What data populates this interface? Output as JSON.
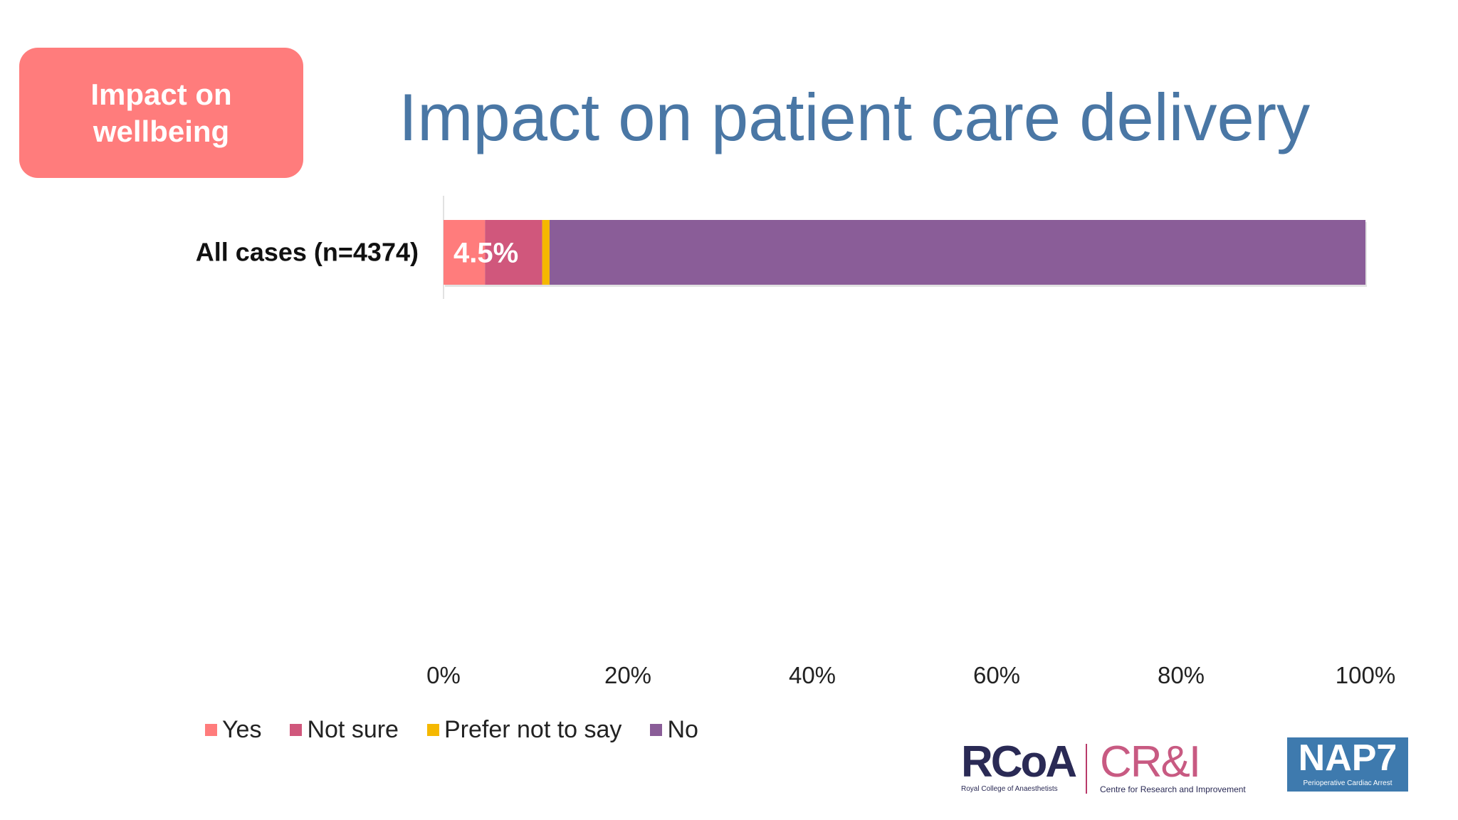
{
  "badge": {
    "line1": "Impact on",
    "line2": "wellbeing",
    "color": "#ff7c7c"
  },
  "title": "Impact on patient care delivery",
  "chart_data": {
    "type": "bar",
    "orientation": "horizontal",
    "stacked": true,
    "categories": [
      "All cases (n=4374)"
    ],
    "series": [
      {
        "name": "Yes",
        "values": [
          4.5
        ],
        "color": "#ff7c7c"
      },
      {
        "name": "Not sure",
        "values": [
          6.2
        ],
        "color": "#d0577c"
      },
      {
        "name": "Prefer not to say",
        "values": [
          0.8
        ],
        "color": "#f5b800"
      },
      {
        "name": "No",
        "values": [
          88.5
        ],
        "color": "#8a5d98"
      }
    ],
    "data_labels": [
      {
        "series": "Yes",
        "category": "All cases (n=4374)",
        "text": "4.5%"
      }
    ],
    "x_ticks": [
      "0%",
      "20%",
      "40%",
      "60%",
      "80%",
      "100%"
    ],
    "xlim": [
      0,
      100
    ],
    "legend_position": "bottom-left",
    "grid": false
  },
  "legend": [
    {
      "label": "Yes",
      "color": "#ff7c7c"
    },
    {
      "label": "Not sure",
      "color": "#d0577c"
    },
    {
      "label": "Prefer not to say",
      "color": "#f5b800"
    },
    {
      "label": "No",
      "color": "#8a5d98"
    }
  ],
  "logos": {
    "rcoa": {
      "name": "RCoA",
      "caption": "Royal College of Anaesthetists"
    },
    "cri": {
      "name": "CR&I",
      "caption": "Centre for Research and Improvement"
    },
    "nap7": {
      "name": "NAP7",
      "caption": "Perioperative Cardiac Arrest"
    }
  }
}
